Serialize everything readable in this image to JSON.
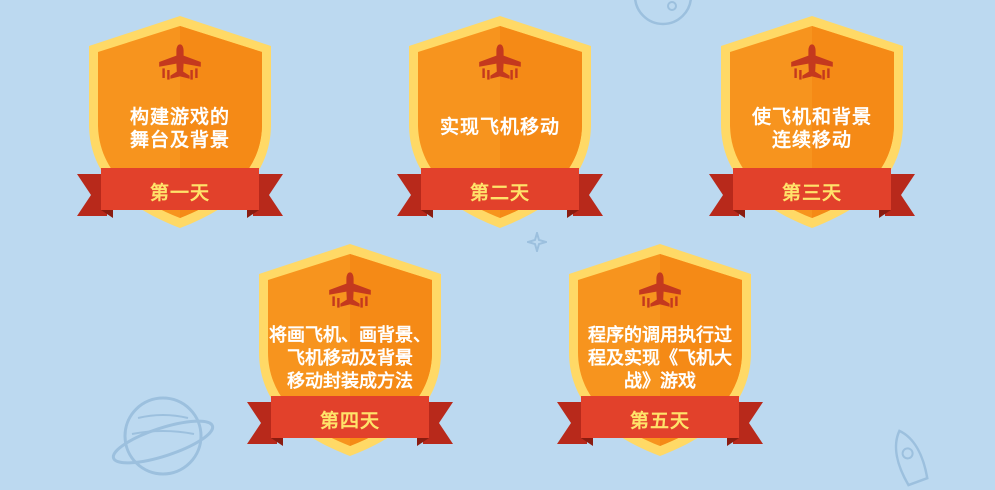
{
  "badges": [
    {
      "desc_lines": [
        "构建游戏的",
        "舞台及背景"
      ],
      "day": "第一天"
    },
    {
      "desc_lines": [
        "实现飞机移动"
      ],
      "day": "第二天"
    },
    {
      "desc_lines": [
        "使飞机和背景",
        "连续移动"
      ],
      "day": "第三天"
    },
    {
      "desc_lines": [
        "将画飞机、画背景、",
        "飞机移动及背景",
        "移动封装成方法"
      ],
      "day": "第四天"
    },
    {
      "desc_lines": [
        "程序的调用执行过",
        "程及实现《飞机大",
        "战》游戏"
      ],
      "day": "第五天"
    }
  ],
  "colors": {
    "background": "#bcd9f0",
    "shield": "#f7941e",
    "shield_border": "#ffd966",
    "ribbon": "#e2412b",
    "day_text": "#ffe36a"
  },
  "icons": [
    "airplane-icon",
    "planet-icon",
    "moon-icon",
    "rocket-icon",
    "sparkle-icon"
  ]
}
